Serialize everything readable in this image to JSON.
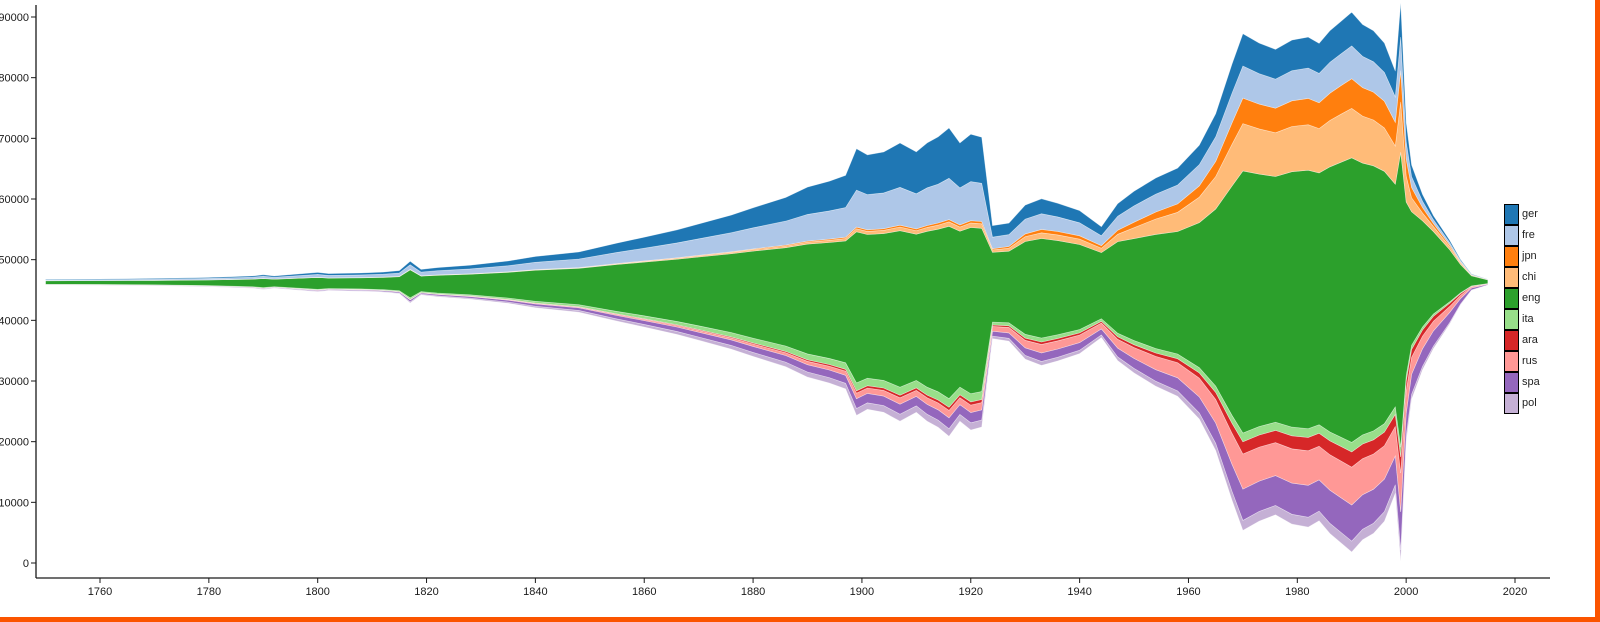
{
  "frame": {
    "accent_border_color": "#fb5400",
    "background_color": "#ffffff"
  },
  "chart_data": {
    "type": "area",
    "variant": "streamgraph-silhouette",
    "title": "",
    "xlabel": "",
    "ylabel": "",
    "legend_position": "right",
    "grid": false,
    "ylim": [
      0,
      92500
    ],
    "center_value": 46300,
    "x_ticks": [
      1760,
      1780,
      1800,
      1820,
      1840,
      1860,
      1880,
      1900,
      1920,
      1940,
      1960,
      1980,
      2000,
      2020
    ],
    "y_ticks": [
      0,
      10000,
      20000,
      30000,
      40000,
      50000,
      60000,
      70000,
      80000,
      90000
    ],
    "stack_order_bottom_to_top": [
      "pol",
      "spa",
      "rus",
      "ara",
      "ita",
      "eng",
      "chi",
      "jpn",
      "fre",
      "ger"
    ],
    "years": [
      1750,
      1760,
      1770,
      1780,
      1788,
      1790,
      1792,
      1800,
      1802,
      1808,
      1812,
      1815,
      1817,
      1819,
      1822,
      1828,
      1835,
      1840,
      1848,
      1855,
      1860,
      1866,
      1870,
      1876,
      1880,
      1886,
      1890,
      1894,
      1897,
      1899,
      1901,
      1904,
      1907,
      1910,
      1912,
      1914,
      1916,
      1918,
      1920,
      1922,
      1924,
      1927,
      1930,
      1933,
      1936,
      1940,
      1944,
      1947,
      1950,
      1954,
      1958,
      1962,
      1965,
      1968,
      1970,
      1973,
      1976,
      1979,
      1982,
      1984,
      1986,
      1988,
      1990,
      1992,
      1994,
      1996,
      1998,
      1999,
      2000,
      2001,
      2003,
      2005,
      2008,
      2010,
      2012,
      2015
    ],
    "series": [
      {
        "name": "ger",
        "color": "#1f77b4",
        "values": [
          90,
          100,
          120,
          150,
          200,
          240,
          200,
          330,
          290,
          310,
          345,
          400,
          560,
          450,
          520,
          615,
          780,
          960,
          1150,
          1530,
          1800,
          2150,
          2440,
          2900,
          3300,
          3900,
          4500,
          4900,
          5300,
          6800,
          6550,
          6750,
          7300,
          6900,
          7400,
          7800,
          8300,
          7400,
          7800,
          7600,
          1900,
          1900,
          2300,
          2450,
          2250,
          2000,
          1480,
          2080,
          2400,
          2650,
          2800,
          3200,
          3800,
          4800,
          5300,
          5050,
          4900,
          5050,
          5100,
          4950,
          5200,
          5350,
          5550,
          5250,
          5100,
          4850,
          4250,
          5600,
          3100,
          1900,
          1100,
          650,
          390,
          210,
          75,
          27
        ]
      },
      {
        "name": "fre",
        "color": "#aec7e8",
        "values": [
          135,
          150,
          180,
          225,
          300,
          360,
          300,
          470,
          410,
          440,
          480,
          555,
          780,
          610,
          690,
          800,
          1000,
          1200,
          1410,
          1830,
          2100,
          2450,
          2730,
          3140,
          3480,
          3950,
          4400,
          4650,
          4900,
          6100,
          5800,
          5900,
          6250,
          5800,
          6200,
          6400,
          6800,
          6100,
          6450,
          6300,
          1900,
          1950,
          2450,
          2600,
          2400,
          2150,
          1630,
          2300,
          2700,
          2950,
          3100,
          3500,
          4050,
          4900,
          5300,
          5000,
          4800,
          4950,
          5000,
          4850,
          5100,
          5250,
          5400,
          5150,
          5000,
          4750,
          4200,
          5550,
          2900,
          1800,
          1050,
          630,
          390,
          210,
          75,
          27
        ]
      },
      {
        "name": "jpn",
        "color": "#ff7f0e",
        "values": [
          4,
          4,
          5,
          6,
          8,
          10,
          8,
          13,
          11,
          12,
          13,
          15,
          27,
          17,
          19,
          22,
          28,
          34,
          41,
          55,
          65,
          78,
          89,
          106,
          120,
          142,
          165,
          182,
          200,
          260,
          255,
          270,
          300,
          290,
          320,
          340,
          370,
          340,
          370,
          370,
          200,
          280,
          450,
          550,
          560,
          540,
          430,
          680,
          900,
          1150,
          1400,
          1850,
          2500,
          3500,
          4200,
          4100,
          4050,
          4250,
          4350,
          4250,
          4500,
          4700,
          4900,
          4700,
          4600,
          4400,
          3900,
          5150,
          2800,
          1700,
          900,
          500,
          260,
          140,
          50,
          18
        ]
      },
      {
        "name": "chi",
        "color": "#ffbb78",
        "values": [
          7,
          8,
          10,
          12,
          16,
          19,
          16,
          26,
          23,
          24,
          27,
          31,
          54,
          34,
          39,
          46,
          58,
          71,
          85,
          113,
          133,
          160,
          182,
          216,
          245,
          290,
          336,
          367,
          400,
          520,
          510,
          540,
          600,
          580,
          640,
          680,
          740,
          690,
          750,
          740,
          400,
          500,
          800,
          950,
          950,
          900,
          720,
          1200,
          1800,
          2550,
          3150,
          4200,
          5350,
          6900,
          7800,
          7450,
          7200,
          7450,
          7500,
          7300,
          7650,
          7900,
          8150,
          7750,
          7550,
          7150,
          6300,
          8300,
          4300,
          2300,
          1300,
          840,
          520,
          280,
          100,
          36
        ]
      },
      {
        "name": "eng",
        "color": "#2ca02c",
        "values": [
          560,
          620,
          740,
          930,
          1240,
          1490,
          1240,
          1950,
          1710,
          1830,
          2010,
          2320,
          4600,
          2560,
          2920,
          3400,
          4230,
          5120,
          5990,
          7720,
          8850,
          10250,
          11350,
          13000,
          14350,
          16200,
          18100,
          19100,
          20100,
          24900,
          23700,
          24200,
          25800,
          24100,
          25700,
          26800,
          28400,
          25700,
          27400,
          26900,
          11500,
          11800,
          15300,
          16400,
          15500,
          14000,
          10900,
          15100,
          16800,
          18800,
          20200,
          23900,
          29200,
          37800,
          43200,
          41600,
          40500,
          42100,
          42600,
          41500,
          43700,
          45300,
          46900,
          44800,
          43700,
          41600,
          36700,
          48600,
          28600,
          22000,
          17500,
          13600,
          8600,
          4650,
          1660,
          600
        ]
      },
      {
        "name": "ita",
        "color": "#98df8a",
        "values": [
          32,
          35,
          42,
          52,
          70,
          84,
          70,
          110,
          96,
          103,
          113,
          130,
          230,
          143,
          163,
          188,
          234,
          282,
          330,
          425,
          487,
          563,
          623,
          712,
          785,
          885,
          976,
          1020,
          1060,
          1300,
          1230,
          1250,
          1320,
          1230,
          1300,
          1350,
          1420,
          1280,
          1350,
          1320,
          480,
          500,
          620,
          660,
          620,
          560,
          430,
          600,
          680,
          740,
          780,
          880,
          1030,
          1300,
          1450,
          1400,
          1360,
          1420,
          1440,
          1400,
          1470,
          1520,
          1570,
          1500,
          1460,
          1390,
          1230,
          1620,
          940,
          700,
          500,
          380,
          230,
          120,
          45,
          16
        ]
      },
      {
        "name": "ara",
        "color": "#d62728",
        "values": [
          5,
          6,
          7,
          9,
          12,
          14,
          12,
          19,
          17,
          18,
          20,
          23,
          41,
          25,
          29,
          34,
          42,
          52,
          62,
          82,
          97,
          116,
          132,
          158,
          180,
          213,
          248,
          272,
          298,
          385,
          375,
          390,
          430,
          410,
          450,
          480,
          520,
          480,
          520,
          520,
          230,
          260,
          360,
          400,
          390,
          360,
          280,
          400,
          470,
          560,
          650,
          850,
          1150,
          1650,
          2000,
          2000,
          2000,
          2150,
          2200,
          2150,
          2300,
          2400,
          2500,
          2400,
          2350,
          2250,
          2000,
          2650,
          1600,
          1300,
          1000,
          800,
          520,
          280,
          100,
          36
        ]
      },
      {
        "name": "rus",
        "color": "#ff9896",
        "values": [
          11,
          12,
          14,
          18,
          24,
          29,
          24,
          39,
          34,
          37,
          41,
          47,
          84,
          52,
          60,
          70,
          89,
          110,
          133,
          178,
          210,
          252,
          288,
          342,
          390,
          470,
          560,
          630,
          700,
          920,
          900,
          950,
          1050,
          1000,
          1080,
          1140,
          1230,
          1130,
          1220,
          1200,
          800,
          900,
          1250,
          1400,
          1350,
          1250,
          980,
          1450,
          1800,
          2200,
          2500,
          3100,
          3900,
          5100,
          5800,
          5600,
          5450,
          5650,
          5700,
          5550,
          5850,
          6050,
          6250,
          5950,
          5800,
          5500,
          4850,
          6400,
          3700,
          2800,
          2100,
          1600,
          1000,
          540,
          190,
          68
        ]
      },
      {
        "name": "spa",
        "color": "#9467bd",
        "values": [
          40,
          45,
          54,
          67,
          90,
          108,
          90,
          142,
          124,
          133,
          146,
          168,
          300,
          186,
          212,
          246,
          305,
          368,
          428,
          550,
          625,
          718,
          790,
          896,
          980,
          1090,
          1200,
          1255,
          1310,
          1620,
          1540,
          1560,
          1650,
          1540,
          1640,
          1700,
          1790,
          1610,
          1700,
          1660,
          800,
          900,
          1250,
          1400,
          1350,
          1250,
          980,
          1450,
          1650,
          1900,
          2150,
          2650,
          3350,
          4450,
          5150,
          5000,
          4900,
          5150,
          5250,
          5150,
          5450,
          5700,
          5950,
          5700,
          5600,
          5350,
          4750,
          6300,
          3600,
          3300,
          2900,
          2500,
          1650,
          900,
          320,
          115
        ]
      },
      {
        "name": "pol",
        "color": "#c5b0d5",
        "values": [
          27,
          30,
          36,
          45,
          60,
          72,
          60,
          95,
          83,
          89,
          98,
          113,
          200,
          125,
          142,
          165,
          205,
          248,
          290,
          372,
          425,
          490,
          540,
          612,
          675,
          760,
          845,
          888,
          925,
          1140,
          1080,
          1100,
          1160,
          1080,
          1150,
          1190,
          1250,
          1130,
          1190,
          1160,
          420,
          460,
          610,
          660,
          620,
          560,
          430,
          620,
          740,
          820,
          870,
          1000,
          1180,
          1480,
          1650,
          1600,
          1560,
          1620,
          1640,
          1600,
          1680,
          1740,
          1800,
          1720,
          1680,
          1600,
          1400,
          1850,
          1060,
          800,
          560,
          420,
          260,
          140,
          50,
          18
        ]
      }
    ]
  }
}
